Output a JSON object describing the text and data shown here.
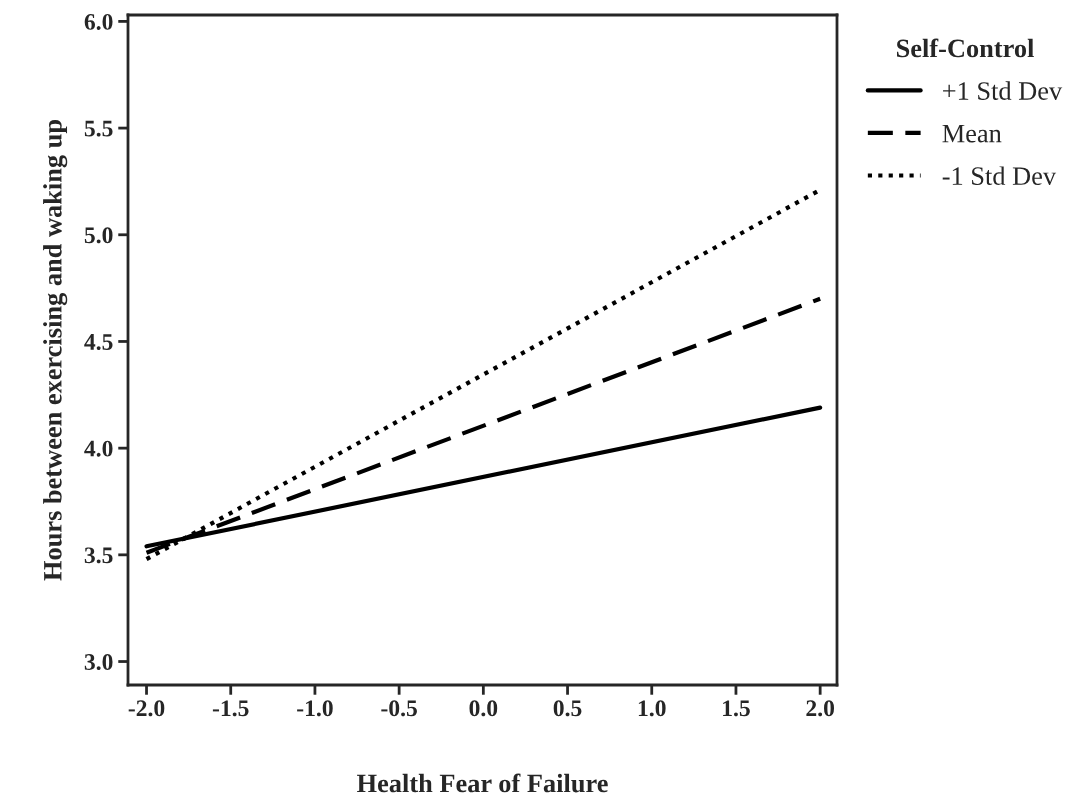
{
  "chart_data": {
    "type": "line",
    "xlabel": "Health Fear of Failure",
    "ylabel": "Hours between exercising and waking up",
    "legend_title": "Self-Control",
    "x": [
      -2.0,
      2.0
    ],
    "series": [
      {
        "name": "+1 Std Dev",
        "color": "#000000",
        "values": [
          3.54,
          4.19
        ],
        "line_style": "solid"
      },
      {
        "name": "Mean",
        "color": "#000000",
        "values": [
          3.51,
          4.7
        ],
        "line_style": "dashed"
      },
      {
        "name": "-1 Std Dev",
        "color": "#000000",
        "values": [
          3.48,
          5.21
        ],
        "line_style": "dotted"
      }
    ],
    "xlim": [
      -2.11,
      2.1
    ],
    "ylim": [
      2.89,
      6.03
    ],
    "xticks": [
      {
        "value": -2.0,
        "label": "-2.0"
      },
      {
        "value": -1.5,
        "label": "-1.5"
      },
      {
        "value": -1.0,
        "label": "-1.0"
      },
      {
        "value": -0.5,
        "label": "-0.5"
      },
      {
        "value": 0.0,
        "label": "0.0"
      },
      {
        "value": 0.5,
        "label": "0.5"
      },
      {
        "value": 1.0,
        "label": "1.0"
      },
      {
        "value": 1.5,
        "label": "1.5"
      },
      {
        "value": 2.0,
        "label": "2.0"
      }
    ],
    "yticks": [
      {
        "value": 3.0,
        "label": "3.0"
      },
      {
        "value": 3.5,
        "label": "3.5"
      },
      {
        "value": 4.0,
        "label": "4.0"
      },
      {
        "value": 4.5,
        "label": "4.5"
      },
      {
        "value": 5.0,
        "label": "5.0"
      },
      {
        "value": 5.5,
        "label": "5.5"
      },
      {
        "value": 6.0,
        "label": "6.0"
      }
    ],
    "grid": false,
    "legend": "right",
    "marker": "none"
  }
}
